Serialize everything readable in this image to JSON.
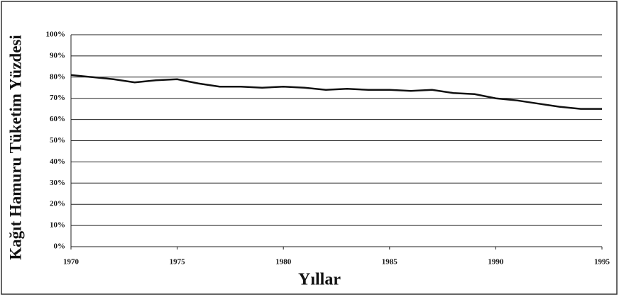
{
  "chart_data": {
    "type": "line",
    "x": [
      1970,
      1971,
      1972,
      1973,
      1974,
      1975,
      1976,
      1977,
      1978,
      1979,
      1980,
      1981,
      1982,
      1983,
      1984,
      1985,
      1986,
      1987,
      1988,
      1989,
      1990,
      1991,
      1992,
      1993,
      1994,
      1995
    ],
    "series": [
      {
        "color": "#111111",
        "values": [
          81,
          80,
          79,
          77.5,
          78.5,
          79,
          77,
          75.5,
          75.5,
          75,
          75.5,
          75,
          74,
          74.5,
          74,
          74,
          73.5,
          74,
          72.5,
          72,
          70,
          69,
          67.5,
          66,
          65,
          65
        ]
      }
    ],
    "xlabel": "Yıllar",
    "ylabel": "Kağıt Hamuru Tüketim Yüzdesi",
    "xlim": [
      1970,
      1995
    ],
    "xticks": [
      1970,
      1975,
      1980,
      1985,
      1990,
      1995
    ],
    "ylim": [
      0,
      100
    ],
    "yticks": [
      {
        "value": 0,
        "label": "0%"
      },
      {
        "value": 10,
        "label": "10%"
      },
      {
        "value": 20,
        "label": "20%"
      },
      {
        "value": 30,
        "label": "30%"
      },
      {
        "value": 40,
        "label": "40%"
      },
      {
        "value": 50,
        "label": "50%"
      },
      {
        "value": 60,
        "label": "60%"
      },
      {
        "value": 70,
        "label": "70%"
      },
      {
        "value": 80,
        "label": "80%"
      },
      {
        "value": 90,
        "label": "90%"
      },
      {
        "value": 100,
        "label": "100%"
      }
    ],
    "grid": true
  }
}
